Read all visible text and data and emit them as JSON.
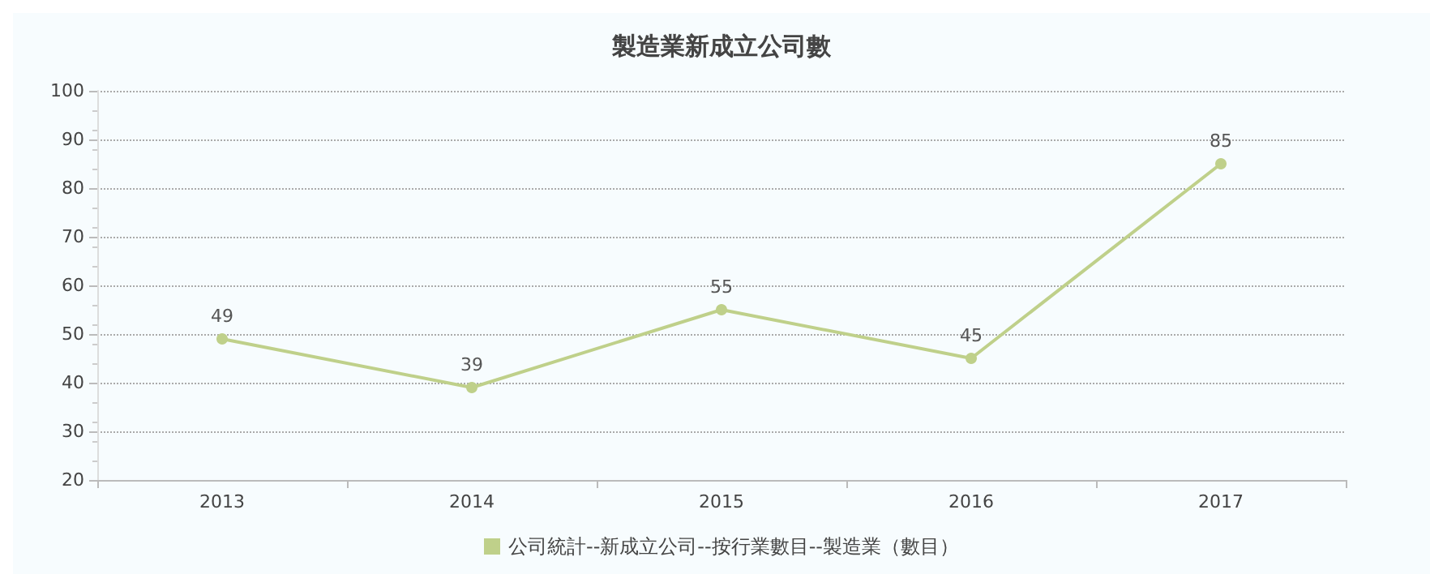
{
  "chart_data": {
    "type": "line",
    "title": "製造業新成立公司數",
    "categories": [
      "2013",
      "2014",
      "2015",
      "2016",
      "2017"
    ],
    "series": [
      {
        "name": "公司統計--新成立公司--按行業數目--製造業（數目）",
        "color": "#bfd08a",
        "values": [
          49,
          39,
          55,
          45,
          85
        ]
      }
    ],
    "ylim": [
      20,
      100
    ],
    "yticks": [
      20,
      30,
      40,
      50,
      60,
      70,
      80,
      90,
      100
    ],
    "grid": "y",
    "legend": "bottom",
    "marker": "circle",
    "line_style": "solid",
    "data_labels": true
  }
}
